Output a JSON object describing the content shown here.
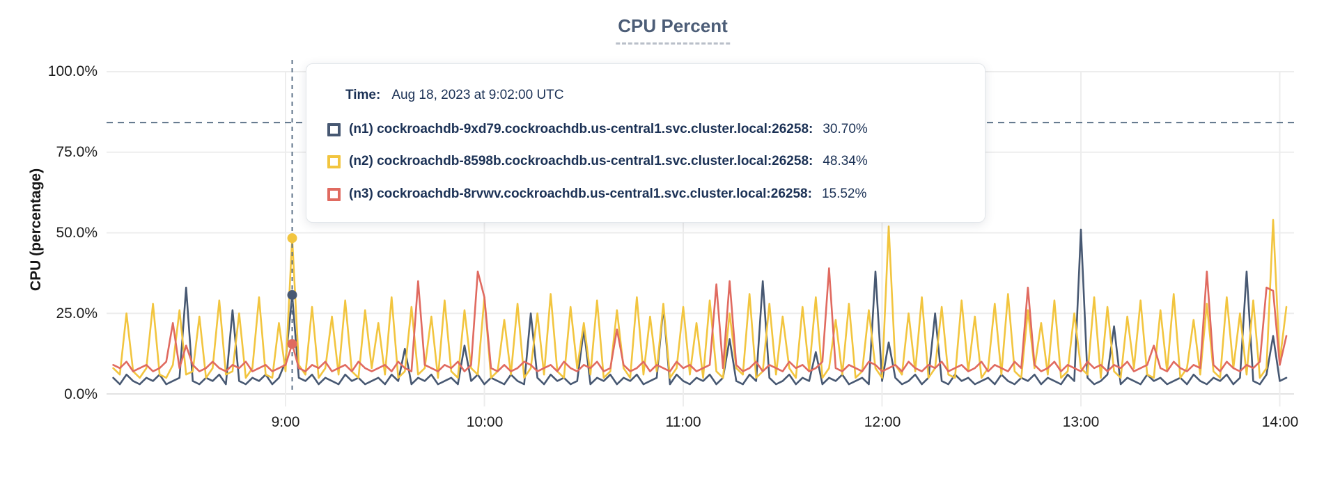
{
  "title": "CPU Percent",
  "tooltip": {
    "time_label": "Time:",
    "time_value": "Aug 18, 2023 at 9:02:00 UTC"
  },
  "chart_data": {
    "type": "line",
    "title": "CPU Percent",
    "ylabel": "CPU (percentage)",
    "ylim": [
      0,
      100
    ],
    "grid": true,
    "y_ticks_percent": [
      0,
      25,
      50,
      75,
      100
    ],
    "y_tick_labels": [
      "100.0%",
      "75.0%",
      "50.0%",
      "25.0%",
      "0.0%"
    ],
    "x_tick_labels": [
      "9:00",
      "10:00",
      "11:00",
      "12:00",
      "13:00",
      "14:00"
    ],
    "x_tick_minutes": [
      540,
      600,
      660,
      720,
      780,
      840
    ],
    "x_start_minutes": 488,
    "x_step_minutes": 2,
    "threshold_percent": 84.2,
    "hover": {
      "index": 27,
      "time": "Aug 18, 2023 at 9:02:00 UTC"
    },
    "series": [
      {
        "id": "n1",
        "label": "(n1) cockroachdb-9xd79.cockroachdb.us-central1.svc.cluster.local:26258:",
        "hover_value": 30.7,
        "hover_value_label": "30.70%",
        "color": "#475872",
        "values": [
          5,
          3,
          6,
          4,
          3,
          5,
          4,
          6,
          3,
          4,
          5,
          33,
          4,
          3,
          5,
          4,
          6,
          3,
          26,
          4,
          3,
          5,
          4,
          6,
          3,
          5,
          10,
          30.7,
          5,
          4,
          6,
          3,
          5,
          4,
          3,
          6,
          4,
          5,
          3,
          4,
          5,
          3,
          6,
          4,
          14,
          3,
          5,
          4,
          6,
          3,
          4,
          5,
          3,
          15,
          4,
          6,
          3,
          5,
          4,
          3,
          6,
          4,
          3,
          25,
          5,
          3,
          6,
          4,
          5,
          3,
          4,
          20,
          3,
          5,
          4,
          6,
          3,
          5,
          4,
          6,
          3,
          4,
          5,
          27,
          3,
          6,
          4,
          3,
          5,
          4,
          6,
          3,
          5,
          17,
          4,
          3,
          6,
          4,
          35,
          5,
          3,
          4,
          6,
          3,
          5,
          4,
          13,
          3,
          5,
          4,
          6,
          3,
          4,
          5,
          3,
          38,
          4,
          16,
          5,
          3,
          4,
          6,
          3,
          5,
          25,
          4,
          3,
          6,
          4,
          5,
          3,
          4,
          5,
          3,
          6,
          4,
          3,
          5,
          4,
          6,
          3,
          5,
          4,
          3,
          6,
          4,
          51,
          5,
          3,
          4,
          6,
          21,
          3,
          5,
          4,
          3,
          6,
          4,
          5,
          3,
          4,
          5,
          3,
          6,
          4,
          3,
          5,
          4,
          6,
          3,
          5,
          38,
          4,
          3,
          6,
          18,
          4,
          5
        ]
      },
      {
        "id": "n2",
        "label": "(n2) cockroachdb-8598b.cockroachdb.us-central1.svc.cluster.local:26258:",
        "hover_value": 48.34,
        "hover_value_label": "48.34%",
        "color": "#F2C53F",
        "values": [
          8,
          6,
          25,
          7,
          5,
          8,
          28,
          6,
          5,
          9,
          26,
          6,
          7,
          24,
          5,
          8,
          29,
          6,
          7,
          25,
          5,
          8,
          30,
          6,
          5,
          22,
          7,
          48.34,
          9,
          6,
          27,
          5,
          8,
          24,
          6,
          29,
          7,
          5,
          26,
          8,
          22,
          6,
          30,
          5,
          7,
          27,
          6,
          8,
          24,
          5,
          29,
          7,
          5,
          26,
          8,
          6,
          30,
          5,
          7,
          23,
          6,
          28,
          5,
          8,
          25,
          6,
          31,
          7,
          5,
          27,
          8,
          22,
          6,
          29,
          5,
          7,
          26,
          8,
          5,
          30,
          6,
          24,
          7,
          28,
          5,
          8,
          27,
          6,
          22,
          5,
          29,
          7,
          5,
          25,
          8,
          6,
          31,
          5,
          7,
          28,
          6,
          24,
          8,
          5,
          27,
          7,
          30,
          5,
          8,
          23,
          6,
          28,
          5,
          7,
          26,
          8,
          5,
          52,
          9,
          6,
          25,
          7,
          30,
          5,
          8,
          27,
          6,
          5,
          29,
          7,
          24,
          5,
          8,
          28,
          6,
          31,
          7,
          5,
          26,
          8,
          22,
          6,
          29,
          5,
          7,
          25,
          8,
          6,
          30,
          5,
          27,
          7,
          5,
          24,
          8,
          29,
          6,
          5,
          26,
          7,
          31,
          5,
          8,
          23,
          6,
          28,
          7,
          5,
          30,
          8,
          25,
          6,
          29,
          5,
          8,
          54,
          10,
          27
        ]
      },
      {
        "id": "n3",
        "label": "(n3) cockroachdb-8rvwv.cockroachdb.us-central1.svc.cluster.local:26258:",
        "hover_value": 15.52,
        "hover_value_label": "15.52%",
        "color": "#E06A60",
        "values": [
          9,
          8,
          10,
          7,
          8,
          9,
          7,
          8,
          10,
          22,
          8,
          15,
          9,
          7,
          8,
          10,
          8,
          7,
          9,
          8,
          10,
          7,
          8,
          9,
          7,
          8,
          9,
          15.52,
          8,
          7,
          9,
          8,
          10,
          7,
          8,
          9,
          7,
          10,
          8,
          7,
          8,
          9,
          7,
          10,
          8,
          7,
          35,
          9,
          8,
          7,
          9,
          8,
          10,
          7,
          9,
          38,
          30,
          8,
          7,
          9,
          7,
          8,
          10,
          9,
          7,
          8,
          9,
          7,
          10,
          8,
          7,
          9,
          8,
          10,
          7,
          8,
          20,
          9,
          7,
          8,
          10,
          7,
          9,
          8,
          7,
          10,
          8,
          9,
          7,
          8,
          9,
          34,
          8,
          35,
          9,
          7,
          8,
          10,
          7,
          9,
          8,
          7,
          10,
          8,
          9,
          7,
          8,
          10,
          39,
          8,
          7,
          9,
          8,
          7,
          10,
          9,
          7,
          8,
          9,
          7,
          10,
          8,
          7,
          9,
          8,
          10,
          7,
          8,
          9,
          7,
          8,
          10,
          7,
          9,
          8,
          7,
          10,
          8,
          33,
          9,
          7,
          8,
          10,
          7,
          9,
          8,
          7,
          10,
          8,
          9,
          7,
          9,
          8,
          10,
          7,
          8,
          9,
          15,
          8,
          7,
          10,
          8,
          7,
          9,
          8,
          38,
          9,
          7,
          10,
          8,
          7,
          9,
          8,
          10,
          33,
          32,
          9,
          18
        ]
      }
    ]
  }
}
